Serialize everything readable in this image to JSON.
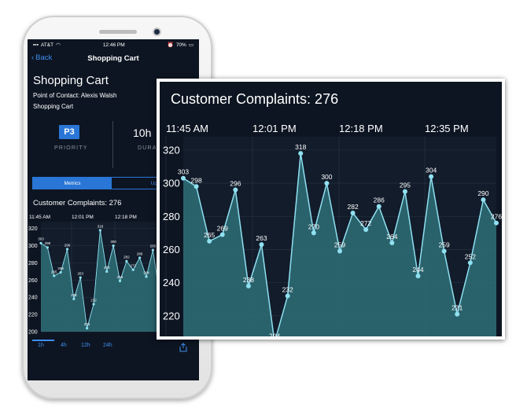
{
  "status": {
    "carrier": "AT&T",
    "time": "12:46 PM",
    "battery": "70%"
  },
  "nav": {
    "back": "Back",
    "title": "Shopping Cart"
  },
  "page": {
    "title": "Shopping Cart",
    "contact": "Point of Contact: Alexis Walsh",
    "subtitle": "Shopping Cart"
  },
  "cards": {
    "priority_value": "P3",
    "priority_label": "PRIORITY",
    "duration_value": "10h",
    "duration_label": "DURA"
  },
  "segments": {
    "left": "Metrics",
    "right": "Upda"
  },
  "tabs": [
    "1h",
    "4h",
    "12h",
    "24h"
  ],
  "icons": {
    "back": "chevron-left-icon",
    "share": "share-icon",
    "wifi": "wifi-icon",
    "battery": "battery-icon"
  },
  "colors": {
    "bg": "#0d1522",
    "accent": "#2a76d6",
    "line": "#8fe0f0",
    "fill": "#2f6f78"
  },
  "chart_data": {
    "type": "area",
    "title": "Customer Complaints: 276",
    "x_ticks": [
      "11:45 AM",
      "12:01 PM",
      "12:18 PM",
      "12:35 PM"
    ],
    "y_ticks": [
      200,
      220,
      240,
      260,
      280,
      300,
      320
    ],
    "ylim": [
      200,
      328
    ],
    "values": [
      303,
      298,
      265,
      269,
      296,
      238,
      263,
      204,
      232,
      318,
      270,
      300,
      259,
      282,
      272,
      286,
      264,
      295,
      244,
      304,
      259,
      221,
      252,
      290,
      276
    ],
    "grid": true
  }
}
